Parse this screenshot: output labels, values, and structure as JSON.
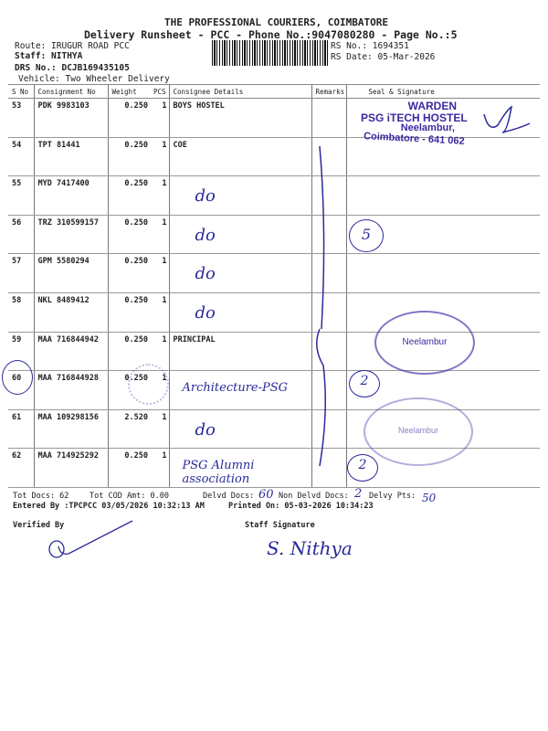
{
  "header": {
    "company": "THE PROFESSIONAL COURIERS, COIMBATORE",
    "subtitle": "Delivery Runsheet - PCC - Phone No.:9047080280 - Page No.:5",
    "route": "Route: IRUGUR ROAD PCC",
    "staff": "Staff: NITHYA",
    "drs": "DRS No.: DCJB169435105",
    "vehicle": "Vehicle: Two Wheeler Delivery",
    "rs_no": "RS No.: 1694351",
    "rs_date": "RS Date: 05-Mar-2026"
  },
  "columns": [
    "S No",
    "Consignment No",
    "Weight",
    "PCS",
    "Consignee Details",
    "Remarks",
    "Seal & Signature"
  ],
  "rows": [
    {
      "sno": "53",
      "cn": "PDK 9983103",
      "wt": "0.250",
      "pcs": "1",
      "consignee": "BOYS HOSTEL",
      "hw": ""
    },
    {
      "sno": "54",
      "cn": "TPT 81441",
      "wt": "0.250",
      "pcs": "1",
      "consignee": "COE",
      "hw": ""
    },
    {
      "sno": "55",
      "cn": "MYD 7417400",
      "wt": "0.250",
      "pcs": "1",
      "consignee": "",
      "hw": "do"
    },
    {
      "sno": "56",
      "cn": "TRZ 310599157",
      "wt": "0.250",
      "pcs": "1",
      "consignee": "",
      "hw": "do"
    },
    {
      "sno": "57",
      "cn": "GPM 5580294",
      "wt": "0.250",
      "pcs": "1",
      "consignee": "",
      "hw": "do"
    },
    {
      "sno": "58",
      "cn": "NKL 8489412",
      "wt": "0.250",
      "pcs": "1",
      "consignee": "",
      "hw": "do"
    },
    {
      "sno": "59",
      "cn": "MAA 716844942",
      "wt": "0.250",
      "pcs": "1",
      "consignee": "PRINCIPAL",
      "hw": ""
    },
    {
      "sno": "60",
      "cn": "MAA 716844928",
      "wt": "0.250",
      "pcs": "1",
      "consignee": "",
      "hw": "Architecture-PSG"
    },
    {
      "sno": "61",
      "cn": "MAA 109298156",
      "wt": "2.520",
      "pcs": "1",
      "consignee": "",
      "hw": "do"
    },
    {
      "sno": "62",
      "cn": "MAA 714925292",
      "wt": "0.250",
      "pcs": "1",
      "consignee": "",
      "hw": "PSG Alumni association"
    }
  ],
  "stamps": {
    "warden": [
      "WARDEN",
      "PSG iTECH HOSTEL",
      "Neelambur,",
      "Coimbatore - 641 062"
    ],
    "neelambur1": "Neelambur",
    "neelambur2": "Neelambur"
  },
  "annotations": {
    "remark_count": "5",
    "remark_count2": "2",
    "remark_count3": "2"
  },
  "footer": {
    "tot_docs": "Tot Docs:  62",
    "tot_cod": "Tot COD Amt:    0.00",
    "delvd_label": "Delvd Docs:",
    "delvd_hw": "60",
    "non_delvd_label": "Non Delvd Docs:",
    "non_delvd_hw": "2",
    "pts_label": "Delvy Pts:",
    "pts_hw": "50",
    "entered_by": "Entered By :TPCPCC 03/05/2026 10:32:13 AM",
    "printed_on": "Printed On: 05-03-2026 10:34:23",
    "verified_by": "Verified By",
    "staff_signature": "Staff Signature",
    "staff_sign_hw": "S. Nithya"
  }
}
